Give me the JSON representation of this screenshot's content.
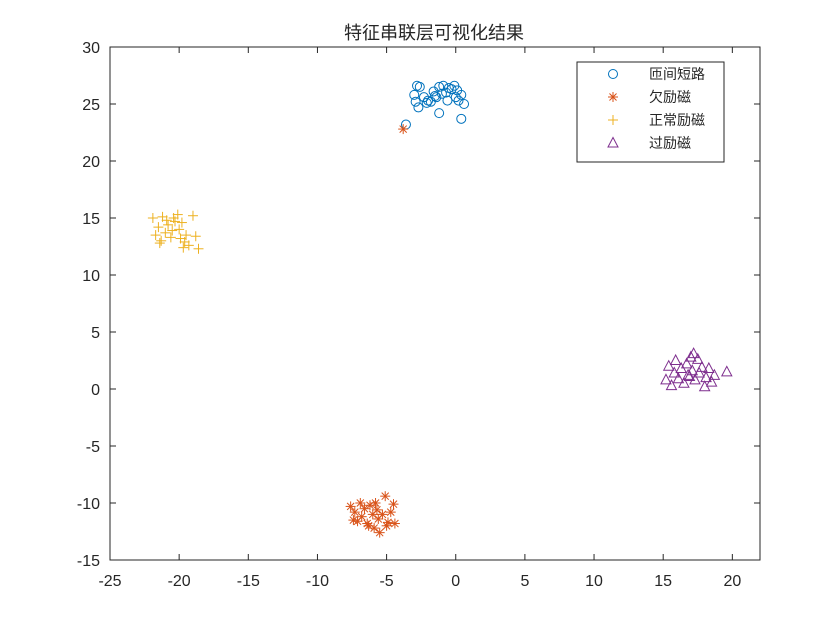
{
  "chart_data": {
    "type": "scatter",
    "title": "特征串联层可视化结果",
    "xlabel": "",
    "ylabel": "",
    "xlim": [
      -25,
      22
    ],
    "ylim": [
      -15,
      30
    ],
    "xticks": [
      -25,
      -20,
      -15,
      -10,
      -5,
      0,
      5,
      10,
      15,
      20
    ],
    "yticks": [
      -15,
      -10,
      -5,
      0,
      5,
      10,
      15,
      20,
      25,
      30
    ],
    "grid": false,
    "legend_position": "top-right",
    "series": [
      {
        "name": "匝间短路",
        "marker": "circle",
        "color": "#0072BD",
        "points": [
          [
            -3.6,
            23.2
          ],
          [
            -3.0,
            25.8
          ],
          [
            -2.8,
            26.6
          ],
          [
            -2.6,
            26.5
          ],
          [
            -2.9,
            25.2
          ],
          [
            -2.7,
            24.7
          ],
          [
            -2.3,
            25.6
          ],
          [
            -2.0,
            25.3
          ],
          [
            -1.8,
            25.2
          ],
          [
            -1.6,
            26.1
          ],
          [
            -1.4,
            25.6
          ],
          [
            -1.2,
            26.5
          ],
          [
            -1.0,
            25.9
          ],
          [
            -0.9,
            26.6
          ],
          [
            -0.7,
            26.0
          ],
          [
            -0.5,
            26.4
          ],
          [
            -0.3,
            26.3
          ],
          [
            -0.1,
            26.6
          ],
          [
            0.1,
            26.2
          ],
          [
            0.2,
            25.3
          ],
          [
            0.4,
            25.8
          ],
          [
            0.6,
            25.0
          ],
          [
            0.4,
            23.7
          ],
          [
            -1.2,
            24.2
          ],
          [
            -0.6,
            25.3
          ],
          [
            -2.1,
            25.1
          ],
          [
            0.0,
            25.6
          ],
          [
            -1.5,
            25.7
          ]
        ]
      },
      {
        "name": "欠励磁",
        "marker": "asterisk",
        "color": "#D95319",
        "points": [
          [
            -3.8,
            22.8
          ],
          [
            -7.6,
            -10.3
          ],
          [
            -7.3,
            -10.8
          ],
          [
            -7.1,
            -11.6
          ],
          [
            -6.9,
            -10.0
          ],
          [
            -6.8,
            -11.2
          ],
          [
            -6.6,
            -10.5
          ],
          [
            -6.4,
            -11.8
          ],
          [
            -6.2,
            -10.2
          ],
          [
            -6.0,
            -11.0
          ],
          [
            -5.9,
            -12.2
          ],
          [
            -5.7,
            -10.6
          ],
          [
            -5.6,
            -11.4
          ],
          [
            -5.5,
            -12.6
          ],
          [
            -5.3,
            -11.0
          ],
          [
            -5.1,
            -9.4
          ],
          [
            -4.9,
            -11.7
          ],
          [
            -4.7,
            -10.8
          ],
          [
            -4.5,
            -10.1
          ],
          [
            -4.4,
            -11.8
          ],
          [
            -7.4,
            -11.5
          ],
          [
            -6.3,
            -12.0
          ],
          [
            -5.8,
            -10.0
          ],
          [
            -5.0,
            -12.0
          ]
        ]
      },
      {
        "name": "正常励磁",
        "marker": "plus",
        "color": "#EDB120",
        "points": [
          [
            -21.9,
            15.0
          ],
          [
            -21.7,
            13.5
          ],
          [
            -21.5,
            14.2
          ],
          [
            -21.3,
            13.0
          ],
          [
            -21.2,
            15.1
          ],
          [
            -21.0,
            13.7
          ],
          [
            -20.8,
            14.4
          ],
          [
            -20.6,
            13.3
          ],
          [
            -20.4,
            15.0
          ],
          [
            -20.3,
            14.7
          ],
          [
            -20.1,
            15.3
          ],
          [
            -20.0,
            14.0
          ],
          [
            -19.9,
            13.2
          ],
          [
            -19.8,
            14.6
          ],
          [
            -19.7,
            12.4
          ],
          [
            -19.5,
            13.5
          ],
          [
            -19.3,
            12.6
          ],
          [
            -19.0,
            15.2
          ],
          [
            -18.8,
            13.4
          ],
          [
            -18.6,
            12.3
          ],
          [
            -21.4,
            12.8
          ],
          [
            -20.5,
            13.9
          ],
          [
            -19.6,
            12.9
          ],
          [
            -20.9,
            14.8
          ]
        ]
      },
      {
        "name": "过励磁",
        "marker": "triangle",
        "color": "#7E2F8E",
        "points": [
          [
            15.2,
            0.8
          ],
          [
            15.4,
            2.0
          ],
          [
            15.6,
            0.3
          ],
          [
            15.8,
            1.4
          ],
          [
            15.9,
            2.5
          ],
          [
            16.1,
            0.9
          ],
          [
            16.3,
            1.8
          ],
          [
            16.5,
            0.5
          ],
          [
            16.7,
            2.2
          ],
          [
            16.8,
            1.2
          ],
          [
            17.0,
            2.8
          ],
          [
            17.1,
            1.6
          ],
          [
            17.2,
            3.1
          ],
          [
            17.3,
            0.8
          ],
          [
            17.5,
            2.6
          ],
          [
            17.6,
            1.4
          ],
          [
            17.8,
            1.9
          ],
          [
            18.0,
            0.2
          ],
          [
            18.1,
            1.0
          ],
          [
            18.3,
            1.8
          ],
          [
            18.5,
            0.6
          ],
          [
            18.7,
            1.2
          ],
          [
            19.6,
            1.5
          ],
          [
            16.9,
            1.1
          ]
        ]
      }
    ]
  }
}
